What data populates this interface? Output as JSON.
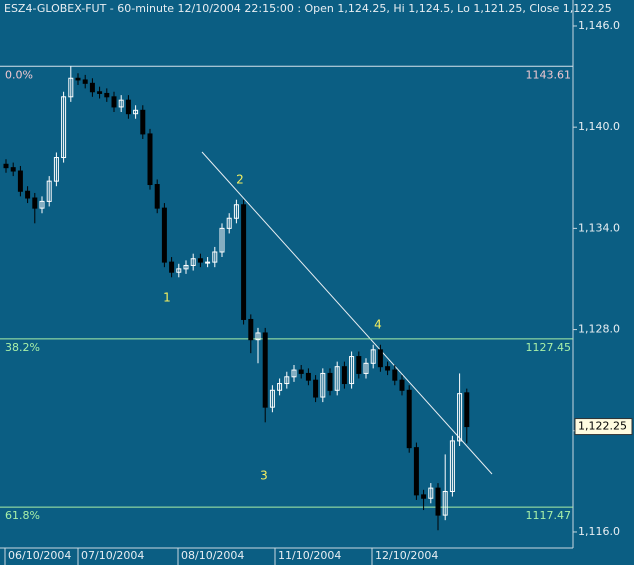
{
  "chart_data": {
    "type": "candlestick",
    "title": "ESZ4-GLOBEX-FUT - 60-minute 12/10/2004 22:15:00 : Open 1,124.25, Hi 1,124.5, Lo 1,121.25, Close 1,122.25",
    "background": "#0b5e83",
    "up_color": "#ffffff",
    "down_color": "#000000",
    "ylim": [
      1115.05,
      1147.54
    ],
    "yticks": [
      {
        "value": 1116,
        "label": "1,116.0"
      },
      {
        "value": 1122,
        "label": "1,122.0"
      },
      {
        "value": 1128,
        "label": "1,128.0"
      },
      {
        "value": 1134,
        "label": "1,134.0"
      },
      {
        "value": 1140,
        "label": "1,140.0"
      },
      {
        "value": 1146,
        "label": "1,146.0"
      }
    ],
    "x_labels": [
      "06/10/2004",
      "07/10/2004",
      "08/10/2004",
      "11/10/2004",
      "12/10/2004"
    ],
    "open": [
      1137.8,
      1137.6,
      1137.4,
      1136.2,
      1135.8,
      1135.2,
      1135.6,
      1136.8,
      1138.2,
      1141.8,
      1142.9,
      1142.8,
      1142.6,
      1142.1,
      1142.0,
      1141.8,
      1141.2,
      1141.6,
      1140.8,
      1141.0,
      1139.6,
      1136.6,
      1135.2,
      1132.0,
      1131.4,
      1131.6,
      1131.8,
      1132.2,
      1132.0,
      1132.0,
      1132.6,
      1134.0,
      1134.6,
      1135.4,
      1128.6,
      1127.4,
      1127.8,
      1123.4,
      1124.4,
      1124.8,
      1125.2,
      1125.6,
      1125.4,
      1125.0,
      1124.0,
      1125.4,
      1124.4,
      1125.8,
      1124.8,
      1126.4,
      1125.4,
      1126.0,
      1126.8,
      1125.8,
      1125.6,
      1125.0,
      1124.4,
      1121.0,
      1118.2,
      1118.0,
      1118.6,
      1117.0,
      1118.4,
      1121.4,
      1124.25
    ],
    "high": [
      1138.1,
      1137.9,
      1137.7,
      1136.5,
      1136.1,
      1135.9,
      1137.1,
      1138.5,
      1142.1,
      1143.61,
      1143.2,
      1143.1,
      1142.9,
      1142.4,
      1142.3,
      1142.1,
      1141.9,
      1141.9,
      1141.3,
      1141.3,
      1139.9,
      1136.9,
      1135.5,
      1132.3,
      1131.9,
      1132.1,
      1132.5,
      1132.5,
      1132.3,
      1132.9,
      1134.3,
      1134.9,
      1135.7,
      1135.7,
      1128.9,
      1128.1,
      1128.1,
      1124.7,
      1125.1,
      1125.5,
      1125.9,
      1125.9,
      1125.7,
      1125.3,
      1125.7,
      1125.7,
      1126.1,
      1126.1,
      1126.7,
      1126.7,
      1126.3,
      1127.1,
      1127.1,
      1126.1,
      1125.9,
      1125.3,
      1124.7,
      1121.3,
      1118.5,
      1118.9,
      1118.9,
      1120.6,
      1121.7,
      1125.4,
      1124.5
    ],
    "low": [
      1137.3,
      1137.1,
      1135.9,
      1135.5,
      1134.3,
      1134.9,
      1135.3,
      1136.5,
      1137.9,
      1141.5,
      1142.5,
      1142.3,
      1141.8,
      1141.7,
      1141.5,
      1140.9,
      1140.9,
      1140.5,
      1140.5,
      1139.3,
      1136.3,
      1134.9,
      1131.7,
      1131.1,
      1131.1,
      1131.3,
      1131.5,
      1131.7,
      1131.7,
      1131.7,
      1132.3,
      1133.7,
      1134.3,
      1128.3,
      1126.6,
      1126.0,
      1122.5,
      1123.1,
      1124.1,
      1124.5,
      1124.9,
      1125.1,
      1124.7,
      1123.7,
      1123.7,
      1124.1,
      1124.1,
      1124.5,
      1124.5,
      1125.1,
      1125.1,
      1125.7,
      1125.5,
      1125.3,
      1124.7,
      1124.1,
      1120.7,
      1117.9,
      1117.3,
      1117.7,
      1116.1,
      1116.7,
      1118.1,
      1121.1,
      1121.25
    ],
    "close": [
      1137.6,
      1137.4,
      1136.2,
      1135.8,
      1135.2,
      1135.6,
      1136.8,
      1138.2,
      1141.8,
      1142.9,
      1142.8,
      1142.6,
      1142.1,
      1142.0,
      1141.8,
      1141.2,
      1141.6,
      1140.8,
      1141.0,
      1139.6,
      1136.6,
      1135.2,
      1132.0,
      1131.4,
      1131.6,
      1131.8,
      1132.2,
      1132.0,
      1132.0,
      1132.6,
      1134.0,
      1134.6,
      1135.4,
      1128.6,
      1127.4,
      1127.8,
      1123.4,
      1124.4,
      1124.8,
      1125.2,
      1125.6,
      1125.4,
      1125.0,
      1124.0,
      1125.4,
      1124.4,
      1125.8,
      1124.8,
      1126.4,
      1125.4,
      1126.0,
      1126.8,
      1125.8,
      1125.6,
      1125.0,
      1124.4,
      1121.0,
      1118.2,
      1118.0,
      1118.6,
      1117.0,
      1118.4,
      1121.4,
      1124.2,
      1122.25
    ],
    "last_label": "1,122.25",
    "fib_levels": [
      {
        "name": "0.0%",
        "value": 1143.61,
        "color": "#f0c8d0",
        "line_color": "#d8e4ec"
      },
      {
        "name": "38.2%",
        "value": 1127.45,
        "color": "#a8f0a8",
        "line_color": "#a8f0a8"
      },
      {
        "name": "61.8%",
        "value": 1117.47,
        "color": "#a8f0a8",
        "line_color": "#a8f0a8"
      }
    ],
    "annotations": [
      "1",
      "2",
      "3",
      "4"
    ]
  }
}
